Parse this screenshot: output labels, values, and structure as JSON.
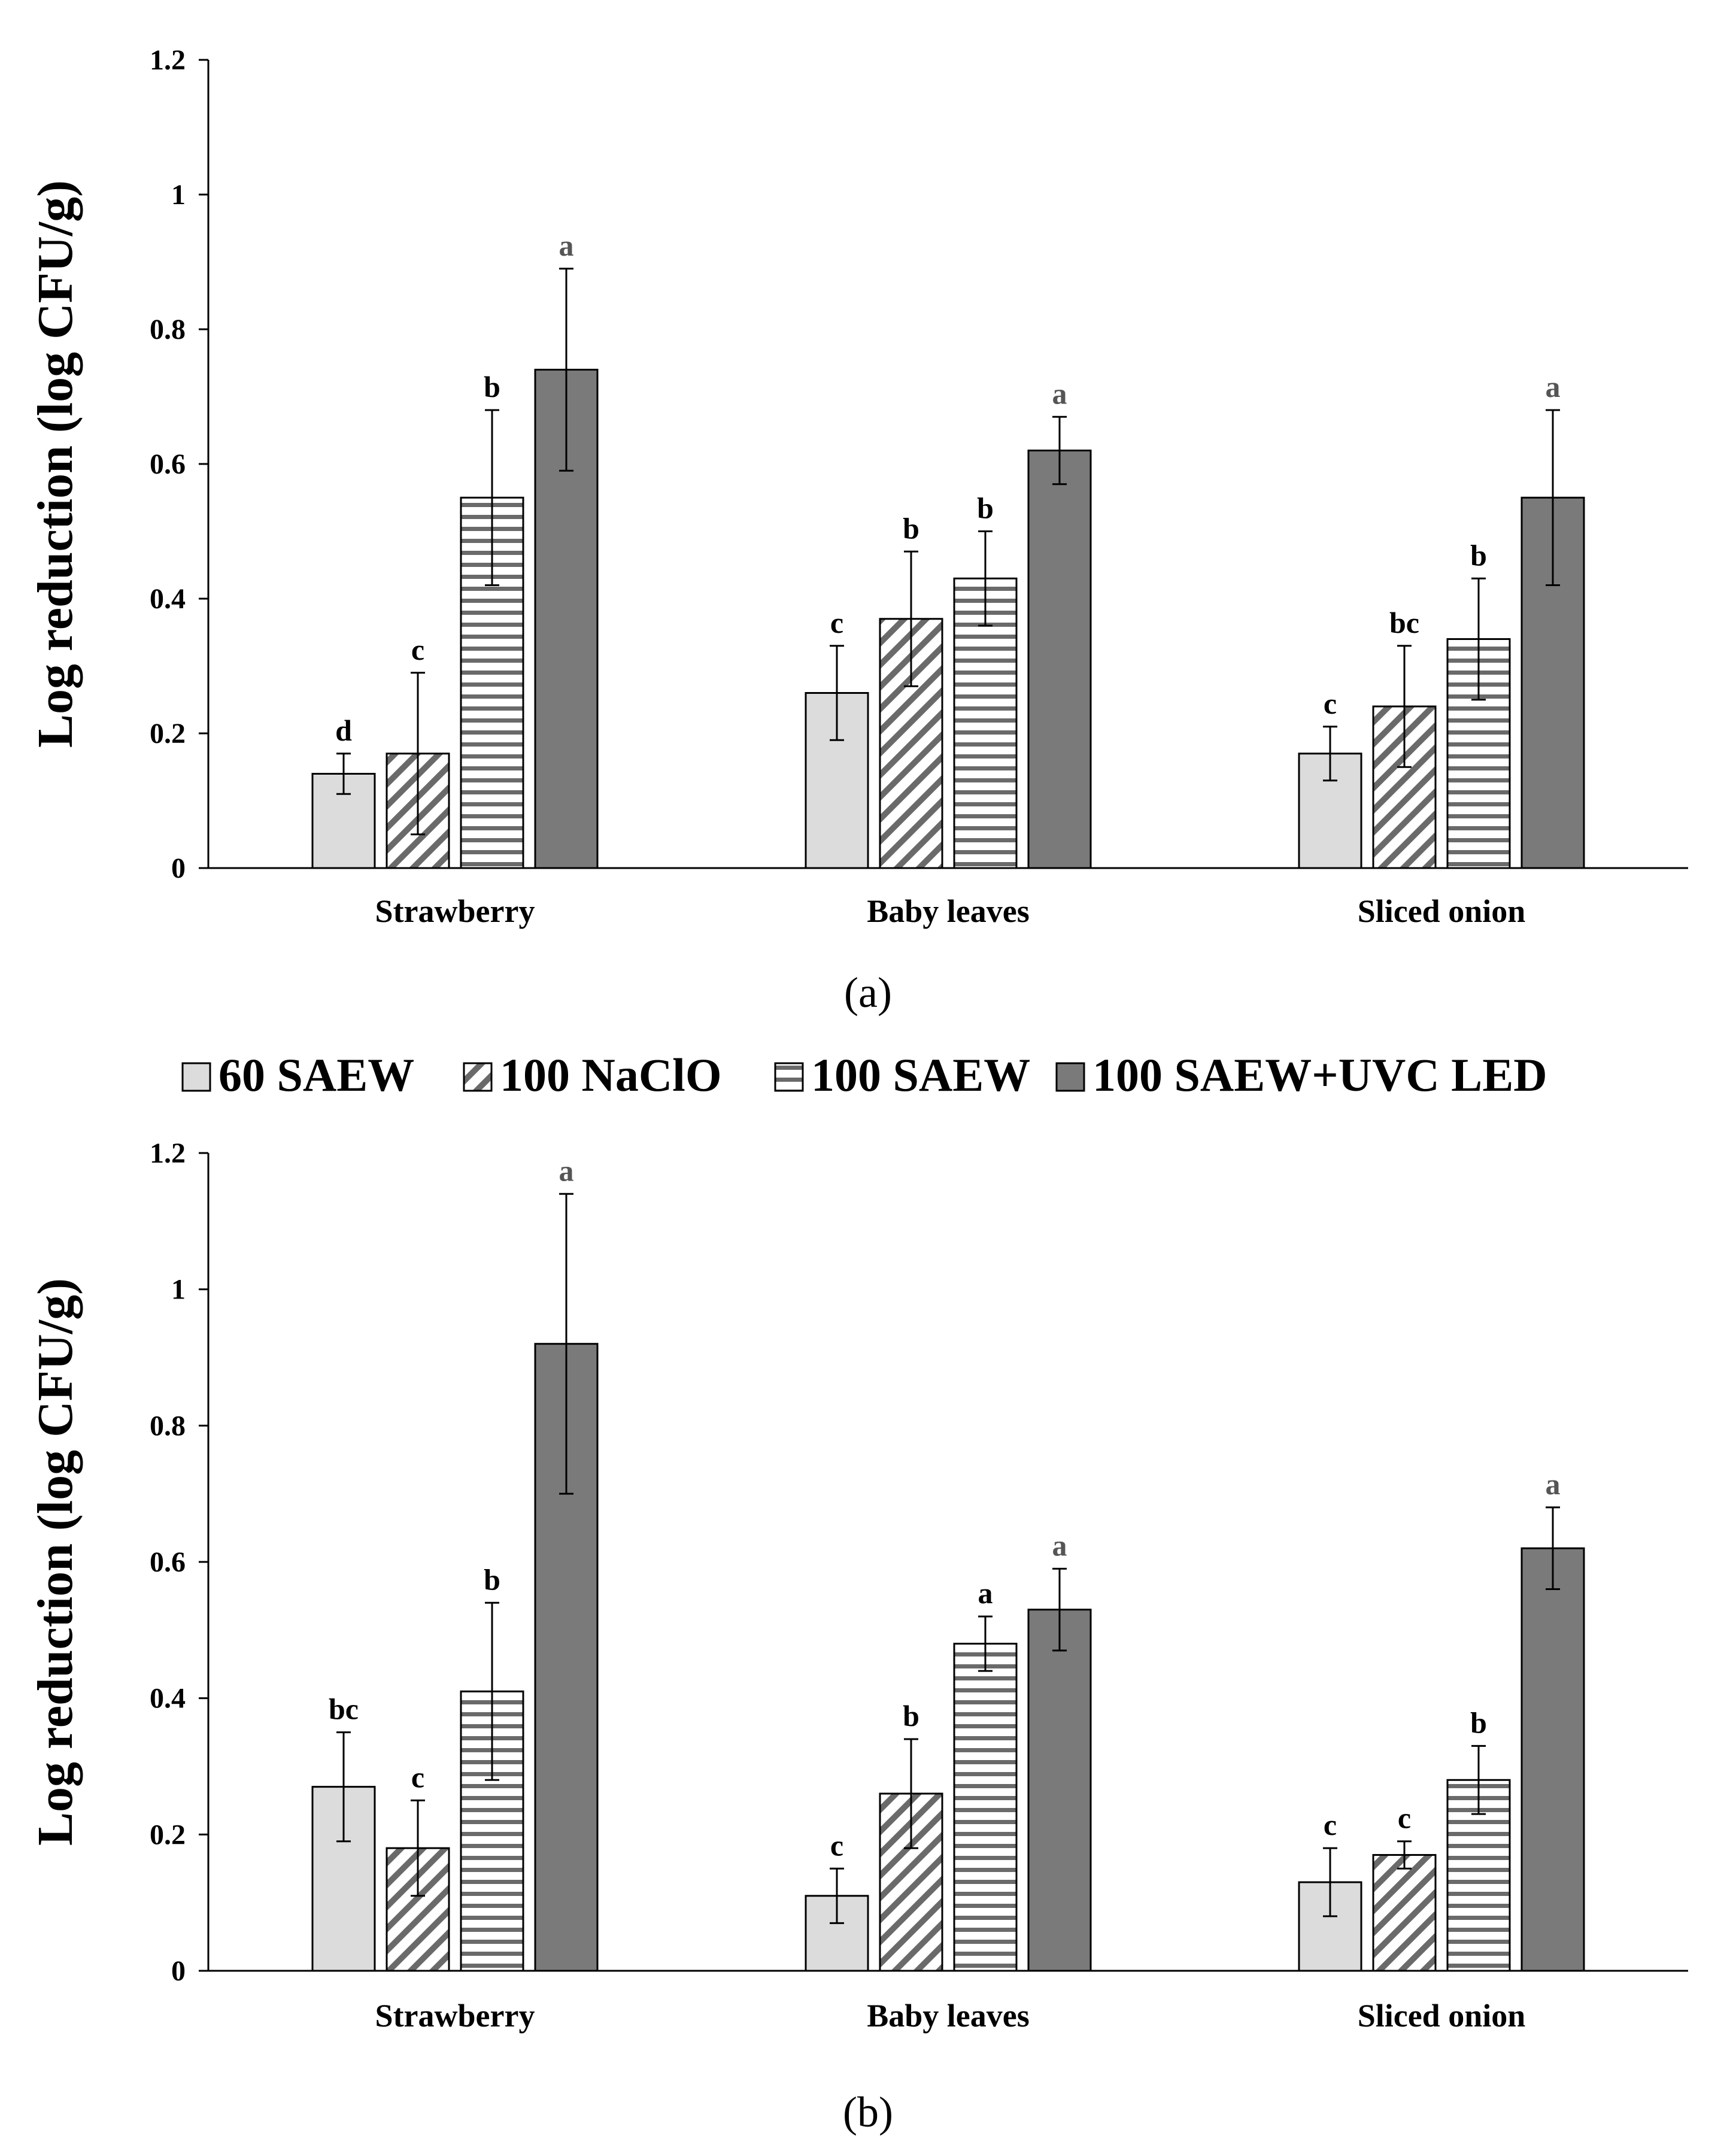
{
  "figure": {
    "panel_labels": [
      "(a)",
      "(b)"
    ],
    "legend": [
      {
        "label": "60 SAEW",
        "pattern": "light-gray"
      },
      {
        "label": "100 NaClO",
        "pattern": "diagonal"
      },
      {
        "label": "100 SAEW",
        "pattern": "horizontal"
      },
      {
        "label": "100 SAEW+UVC LED",
        "pattern": "dark-gray"
      }
    ],
    "colors": {
      "light": "#dcdcdc",
      "dark": "#7a7a7a",
      "stroke": "#000000",
      "sig_grey": "#555555"
    }
  },
  "chart_data": [
    {
      "type": "bar",
      "panel": "(a)",
      "title": "",
      "xlabel": "",
      "ylabel": "Log reduction (log CFU/g)",
      "ylim": [
        0,
        1.2
      ],
      "yticks": [
        "0",
        "0.2",
        "0.4",
        "0.6",
        "0.8",
        "1",
        "1.2"
      ],
      "categories": [
        "Strawberry",
        "Baby leaves",
        "Sliced onion"
      ],
      "series": [
        {
          "name": "60 SAEW",
          "values": [
            0.14,
            0.26,
            0.17
          ],
          "errors": [
            0.03,
            0.07,
            0.04
          ],
          "labels": [
            "d",
            "c",
            "c"
          ]
        },
        {
          "name": "100 NaClO",
          "values": [
            0.17,
            0.37,
            0.24
          ],
          "errors": [
            0.12,
            0.1,
            0.09
          ],
          "labels": [
            "c",
            "b",
            "bc"
          ]
        },
        {
          "name": "100 SAEW",
          "values": [
            0.55,
            0.43,
            0.34
          ],
          "errors": [
            0.13,
            0.07,
            0.09
          ],
          "labels": [
            "b",
            "b",
            "b"
          ]
        },
        {
          "name": "100 SAEW+UVC LED",
          "values": [
            0.74,
            0.62,
            0.55
          ],
          "errors": [
            0.15,
            0.05,
            0.13
          ],
          "labels": [
            "a",
            "a",
            "a"
          ]
        }
      ]
    },
    {
      "type": "bar",
      "panel": "(b)",
      "title": "",
      "xlabel": "",
      "ylabel": "Log reduction (log CFU/g)",
      "ylim": [
        0,
        1.2
      ],
      "yticks": [
        "0",
        "0.2",
        "0.4",
        "0.6",
        "0.8",
        "1",
        "1.2"
      ],
      "categories": [
        "Strawberry",
        "Baby leaves",
        "Sliced onion"
      ],
      "series": [
        {
          "name": "60 SAEW",
          "values": [
            0.27,
            0.11,
            0.13
          ],
          "errors": [
            0.08,
            0.04,
            0.05
          ],
          "labels": [
            "bc",
            "c",
            "c"
          ]
        },
        {
          "name": "100 NaClO",
          "values": [
            0.18,
            0.26,
            0.17
          ],
          "errors": [
            0.07,
            0.08,
            0.02
          ],
          "labels": [
            "c",
            "b",
            "c"
          ]
        },
        {
          "name": "100 SAEW",
          "values": [
            0.41,
            0.48,
            0.28
          ],
          "errors": [
            0.13,
            0.04,
            0.05
          ],
          "labels": [
            "b",
            "a",
            "b"
          ]
        },
        {
          "name": "100 SAEW+UVC LED",
          "values": [
            0.92,
            0.53,
            0.62
          ],
          "errors": [
            0.22,
            0.06,
            0.06
          ],
          "labels": [
            "a",
            "a",
            "a"
          ]
        }
      ]
    }
  ]
}
